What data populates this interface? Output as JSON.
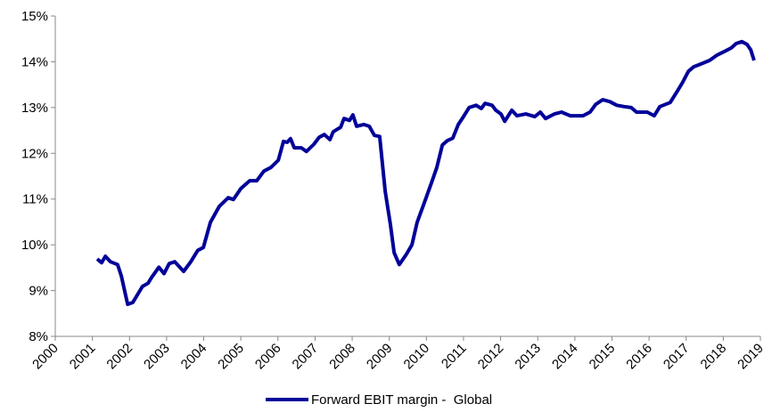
{
  "chart_data": {
    "type": "line",
    "xlim": [
      2000,
      2019
    ],
    "xticks": [
      2000,
      2001,
      2002,
      2003,
      2004,
      2005,
      2006,
      2007,
      2008,
      2009,
      2010,
      2011,
      2012,
      2013,
      2014,
      2015,
      2016,
      2017,
      2018,
      2019
    ],
    "ylim": [
      8,
      15
    ],
    "yticks": [
      {
        "value": 8,
        "label": "8%"
      },
      {
        "value": 9,
        "label": "9%"
      },
      {
        "value": 10,
        "label": "10%"
      },
      {
        "value": 11,
        "label": "11%"
      },
      {
        "value": 12,
        "label": "12%"
      },
      {
        "value": 13,
        "label": "13%"
      },
      {
        "value": 14,
        "label": "14%"
      },
      {
        "value": 15,
        "label": "15%"
      }
    ],
    "legend": "bottom",
    "x": [
      2001.13,
      2001.25,
      2001.35,
      2001.49,
      2001.68,
      2001.78,
      2001.95,
      2002.09,
      2002.35,
      2002.5,
      2002.59,
      2002.79,
      2002.93,
      2003.07,
      2003.22,
      2003.46,
      2003.65,
      2003.84,
      2003.99,
      2004.18,
      2004.42,
      2004.66,
      2004.8,
      2005.0,
      2005.24,
      2005.43,
      2005.62,
      2005.81,
      2006.01,
      2006.15,
      2006.25,
      2006.34,
      2006.44,
      2006.63,
      2006.77,
      2006.97,
      2007.11,
      2007.25,
      2007.4,
      2007.49,
      2007.69,
      2007.78,
      2007.93,
      2008.02,
      2008.12,
      2008.31,
      2008.46,
      2008.6,
      2008.74,
      2008.89,
      2009.03,
      2009.13,
      2009.27,
      2009.46,
      2009.61,
      2009.75,
      2009.94,
      2010.14,
      2010.28,
      2010.43,
      2010.57,
      2010.71,
      2010.86,
      2011.0,
      2011.15,
      2011.34,
      2011.48,
      2011.58,
      2011.77,
      2011.87,
      2012.01,
      2012.11,
      2012.3,
      2012.44,
      2012.68,
      2012.92,
      2013.07,
      2013.21,
      2013.45,
      2013.64,
      2013.88,
      2014.22,
      2014.41,
      2014.56,
      2014.75,
      2014.94,
      2015.13,
      2015.33,
      2015.52,
      2015.66,
      2015.95,
      2016.14,
      2016.29,
      2016.57,
      2016.77,
      2016.91,
      2017.06,
      2017.2,
      2017.39,
      2017.63,
      2017.82,
      2018.02,
      2018.21,
      2018.35,
      2018.5,
      2018.64,
      2018.74,
      2018.83
    ],
    "series": [
      {
        "name": "Forward EBIT margin -  Global",
        "color": "#000099",
        "values": [
          9.69,
          9.61,
          9.75,
          9.63,
          9.57,
          9.32,
          8.7,
          8.74,
          9.09,
          9.16,
          9.28,
          9.51,
          9.37,
          9.59,
          9.63,
          9.42,
          9.63,
          9.88,
          9.94,
          10.49,
          10.84,
          11.03,
          10.99,
          11.23,
          11.4,
          11.4,
          11.61,
          11.69,
          11.85,
          12.26,
          12.24,
          12.32,
          12.12,
          12.12,
          12.04,
          12.2,
          12.35,
          12.41,
          12.3,
          12.47,
          12.57,
          12.76,
          12.72,
          12.84,
          12.59,
          12.63,
          12.59,
          12.39,
          12.37,
          11.17,
          10.45,
          9.83,
          9.57,
          9.79,
          10.0,
          10.49,
          10.91,
          11.36,
          11.69,
          12.18,
          12.28,
          12.33,
          12.63,
          12.8,
          13.0,
          13.05,
          12.98,
          13.09,
          13.05,
          12.94,
          12.86,
          12.7,
          12.94,
          12.82,
          12.86,
          12.8,
          12.9,
          12.76,
          12.86,
          12.9,
          12.82,
          12.82,
          12.9,
          13.07,
          13.17,
          13.13,
          13.05,
          13.02,
          13.0,
          12.9,
          12.9,
          12.82,
          13.02,
          13.11,
          13.37,
          13.56,
          13.79,
          13.89,
          13.95,
          14.03,
          14.14,
          14.22,
          14.3,
          14.4,
          14.44,
          14.38,
          14.26,
          14.03
        ]
      }
    ]
  }
}
